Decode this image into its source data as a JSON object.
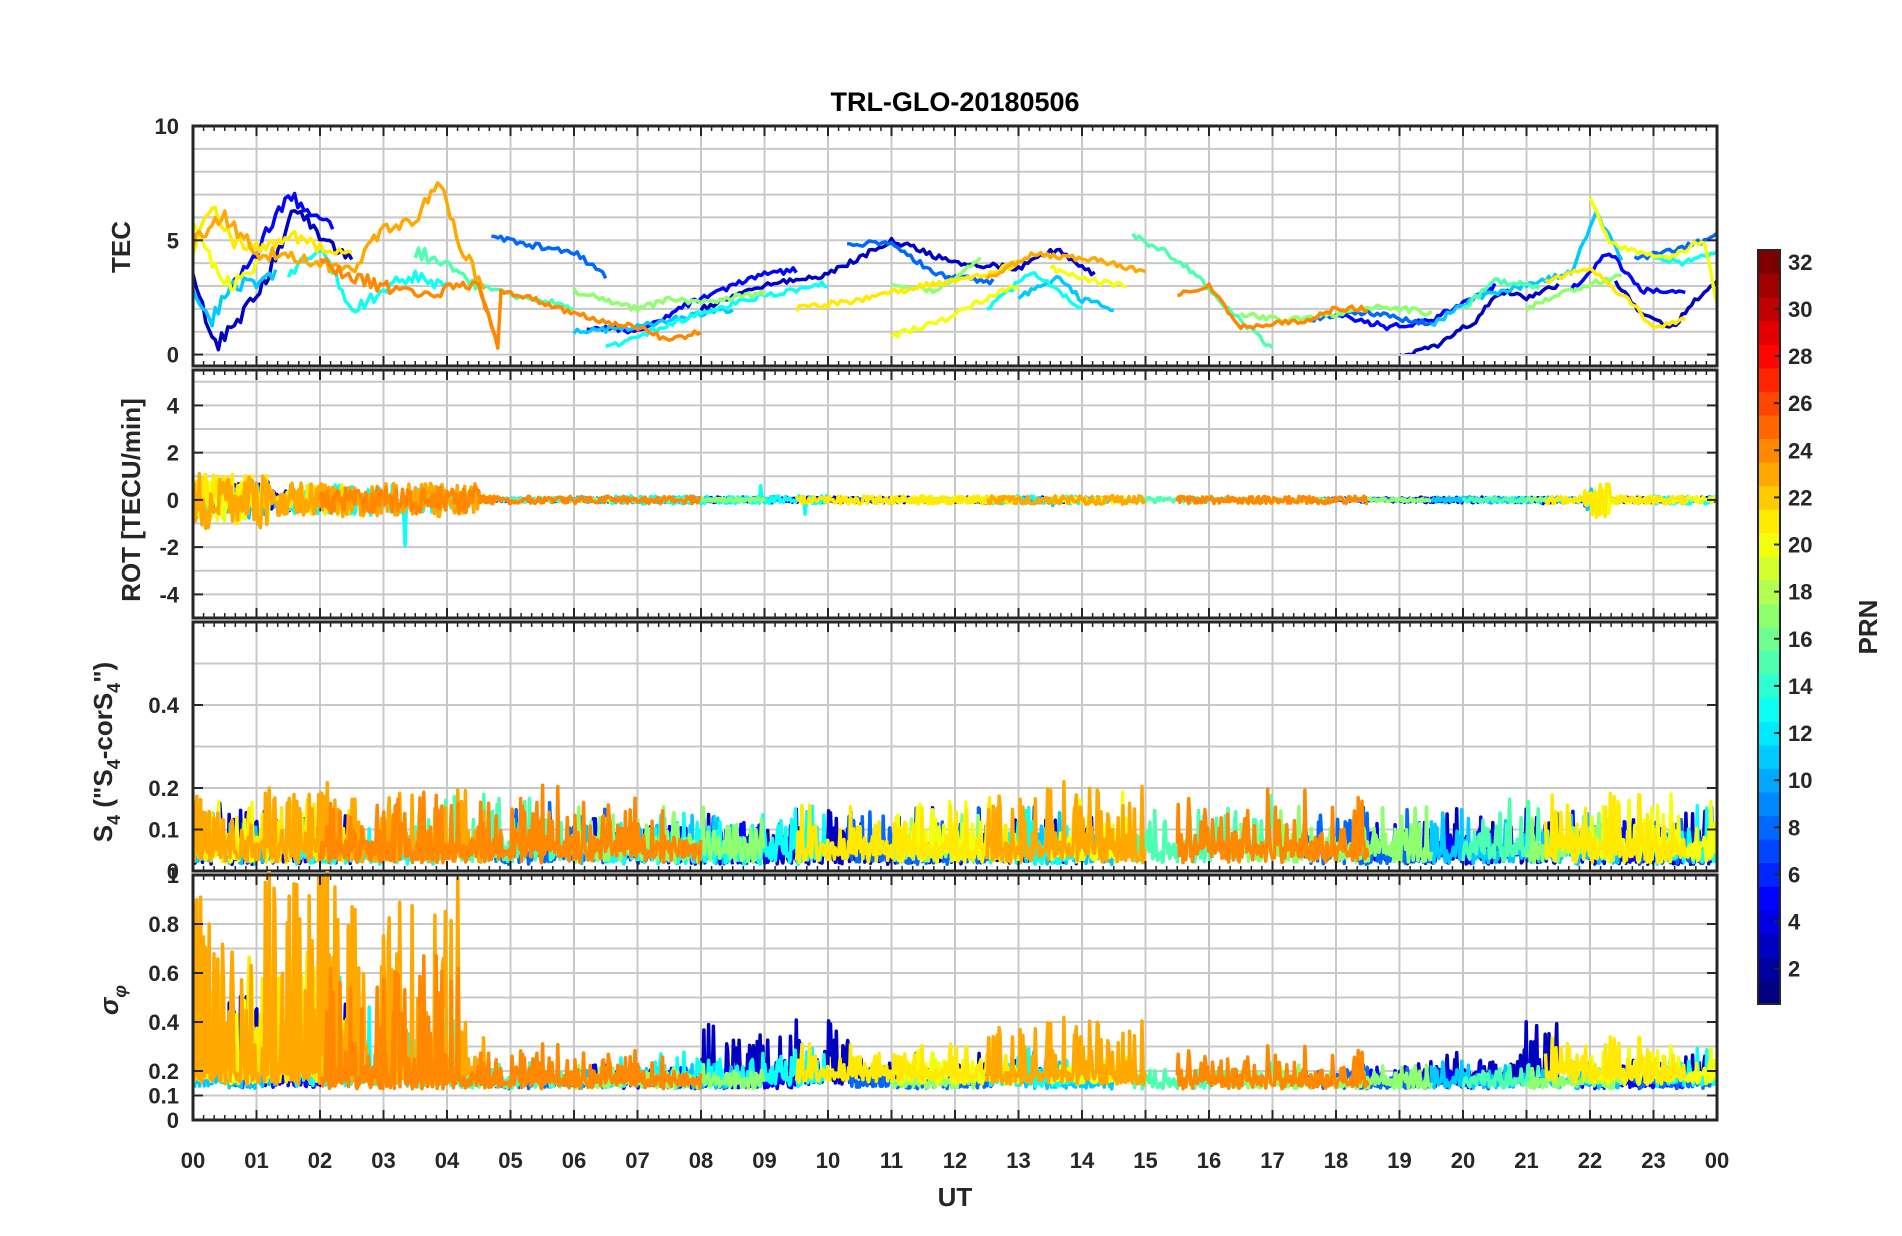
{
  "chart_data": {
    "type": "line",
    "title": "TRL-GLO-20180506",
    "xlabel": "UT",
    "x_ticks": [
      "00",
      "01",
      "02",
      "03",
      "04",
      "05",
      "06",
      "07",
      "08",
      "09",
      "10",
      "11",
      "12",
      "13",
      "14",
      "15",
      "16",
      "17",
      "18",
      "19",
      "20",
      "21",
      "22",
      "23",
      "00"
    ],
    "x_range_hours": [
      0,
      24
    ],
    "panels": [
      {
        "name": "tec",
        "ylabel": "TEC",
        "ylim": [
          -0.5,
          10
        ],
        "yticks": [
          0,
          5,
          10
        ],
        "ytick_labels": [
          "0",
          "5",
          "10"
        ],
        "minor_grid_step": 1,
        "sample_step_h": 0.05,
        "noise": 0.25
      },
      {
        "name": "rot",
        "ylabel": "ROT [TECU/min]",
        "ylim": [
          -5,
          5.5
        ],
        "yticks": [
          -4,
          -2,
          0,
          2,
          4
        ],
        "ytick_labels": [
          "-4",
          "-2",
          "0",
          "2",
          "4"
        ],
        "minor_grid_step": 1,
        "sample_step_h": 0.02
      },
      {
        "name": "s4",
        "ylabel_parts": [
          "S",
          "4",
          " (\"S",
          "4",
          "-corS",
          "4",
          "\")"
        ],
        "ylim": [
          0,
          0.6
        ],
        "yticks": [
          0,
          0.1,
          0.2,
          0.4
        ],
        "ytick_labels": [
          "0",
          "0.1",
          "0.2",
          "0.4"
        ],
        "minor_grid_step": 0.1,
        "sample_step_h": 0.015
      },
      {
        "name": "sigma_phi",
        "ylabel_parts": [
          "σ",
          "φ"
        ],
        "ylim": [
          0,
          1
        ],
        "yticks": [
          0,
          0.1,
          0.2,
          0.4,
          0.6,
          0.8,
          1
        ],
        "ytick_labels": [
          "0",
          "0.1",
          "0.2",
          "0.4",
          "0.6",
          "0.8",
          "1"
        ],
        "minor_grid_step": 0.1,
        "sample_step_h": 0.015
      }
    ],
    "colorbar": {
      "label": "PRN",
      "range": [
        1,
        32
      ],
      "ticks": [
        2,
        4,
        6,
        8,
        10,
        12,
        14,
        16,
        18,
        20,
        22,
        24,
        26,
        28,
        30,
        32
      ],
      "tick_labels": [
        "2",
        "4",
        "6",
        "8",
        "10",
        "12",
        "14",
        "16",
        "18",
        "20",
        "22",
        "24",
        "26",
        "28",
        "30",
        "32"
      ],
      "colormap": "jet",
      "levels": 32
    },
    "series": [
      {
        "name": "PRN 3",
        "prn": 3,
        "passes": [
          [
            0,
            2.5
          ],
          [
            8.0,
            14.2
          ],
          [
            19.0,
            21.5
          ],
          [
            22.4,
            24
          ]
        ],
        "tec": [
          [
            0,
            3.5
          ],
          [
            0.2,
            1.5
          ],
          [
            0.4,
            0.5
          ],
          [
            0.7,
            1.5
          ],
          [
            1.0,
            2.5
          ],
          [
            1.3,
            4.2
          ],
          [
            1.6,
            6.5
          ],
          [
            2.0,
            5.2
          ],
          [
            2.5,
            4.0
          ],
          [
            8.0,
            2.0
          ],
          [
            9.0,
            3.0
          ],
          [
            10.0,
            3.5
          ],
          [
            11.0,
            5.0
          ],
          [
            12.0,
            4.0
          ],
          [
            13.0,
            3.8
          ],
          [
            13.6,
            4.6
          ],
          [
            14.2,
            3.5
          ],
          [
            19.0,
            -0.1
          ],
          [
            19.6,
            0.4
          ],
          [
            20.2,
            1.5
          ],
          [
            20.6,
            2.8
          ],
          [
            21.0,
            2.5
          ],
          [
            21.5,
            3.0
          ],
          [
            22.4,
            3.2
          ],
          [
            22.8,
            1.8
          ],
          [
            23.3,
            1.2
          ],
          [
            23.8,
            2.8
          ],
          [
            24,
            3.2
          ]
        ],
        "rot_amp": 0.35,
        "s4_base": 0.04,
        "s4_amp": 0.07,
        "sp_base": 0.17,
        "sp_amp": 0.08
      },
      {
        "name": "PRN 5",
        "prn": 5,
        "passes": [
          [
            0.6,
            2.2
          ],
          [
            6.2,
            9.5
          ],
          [
            18.0,
            20.5
          ],
          [
            21.7,
            23.5
          ]
        ],
        "tec": [
          [
            0.6,
            3.0
          ],
          [
            1.0,
            4.5
          ],
          [
            1.5,
            7.0
          ],
          [
            2.2,
            5.5
          ],
          [
            6.2,
            1.2
          ],
          [
            7.0,
            1.0
          ],
          [
            8.0,
            2.5
          ],
          [
            9.0,
            3.5
          ],
          [
            9.5,
            3.7
          ],
          [
            18.0,
            1.8
          ],
          [
            18.8,
            1.2
          ],
          [
            19.5,
            1.5
          ],
          [
            20.5,
            3.0
          ],
          [
            21.7,
            2.8
          ],
          [
            22.3,
            4.5
          ],
          [
            22.8,
            2.8
          ],
          [
            23.5,
            2.7
          ]
        ],
        "rot_amp": 0.25,
        "s4_base": 0.04,
        "s4_amp": 0.06,
        "sp_base": 0.15,
        "sp_amp": 0.06
      },
      {
        "name": "PRN 8",
        "prn": 8,
        "passes": [
          [
            4.7,
            6.5
          ],
          [
            10.3,
            12.6
          ],
          [
            17.5,
            19.5
          ],
          [
            22.7,
            24
          ]
        ],
        "tec": [
          [
            4.7,
            5.2
          ],
          [
            5.3,
            4.8
          ],
          [
            6.0,
            4.5
          ],
          [
            6.5,
            3.4
          ],
          [
            10.3,
            4.8
          ],
          [
            11.0,
            4.9
          ],
          [
            11.7,
            3.5
          ],
          [
            12.6,
            3.2
          ],
          [
            17.5,
            1.5
          ],
          [
            18.3,
            1.9
          ],
          [
            19.0,
            1.6
          ],
          [
            19.5,
            1.3
          ],
          [
            22.7,
            4.2
          ],
          [
            23.4,
            4.6
          ],
          [
            24,
            5.2
          ]
        ],
        "rot_amp": 0.2,
        "s4_base": 0.04,
        "s4_amp": 0.07,
        "sp_base": 0.15,
        "sp_amp": 0.05
      },
      {
        "name": "PRN 11",
        "prn": 11,
        "passes": [
          [
            0,
            1.3
          ],
          [
            6.0,
            8.5
          ],
          [
            13.0,
            14.5
          ],
          [
            19.5,
            22.5
          ]
        ],
        "tec": [
          [
            0,
            2.8
          ],
          [
            0.3,
            1.5
          ],
          [
            0.6,
            3.0
          ],
          [
            1.0,
            3.2
          ],
          [
            1.3,
            3.6
          ],
          [
            6.0,
            1.0
          ],
          [
            7.0,
            1.2
          ],
          [
            8.0,
            1.8
          ],
          [
            8.5,
            2.0
          ],
          [
            13.0,
            2.5
          ],
          [
            13.6,
            3.4
          ],
          [
            14.0,
            2.4
          ],
          [
            14.5,
            2.0
          ],
          [
            19.5,
            1.3
          ],
          [
            20.2,
            2.5
          ],
          [
            21.0,
            3.0
          ],
          [
            21.7,
            3.6
          ],
          [
            22.1,
            6.2
          ],
          [
            22.5,
            4.2
          ]
        ],
        "rot_amp": 0.35,
        "s4_base": 0.04,
        "s4_amp": 0.06,
        "sp_base": 0.15,
        "sp_amp": 0.06
      },
      {
        "name": "PRN 13",
        "prn": 13,
        "passes": [
          [
            1.5,
            4.0
          ],
          [
            6.5,
            10.0
          ],
          [
            12.5,
            14.0
          ],
          [
            23.0,
            24
          ]
        ],
        "tec": [
          [
            1.5,
            3.5
          ],
          [
            2.0,
            4.8
          ],
          [
            2.5,
            2.0
          ],
          [
            3.0,
            2.8
          ],
          [
            3.5,
            3.5
          ],
          [
            4.0,
            3.0
          ],
          [
            6.5,
            0.3
          ],
          [
            7.0,
            0.8
          ],
          [
            8.0,
            1.8
          ],
          [
            9.0,
            2.6
          ],
          [
            10.0,
            3.1
          ],
          [
            12.5,
            2.0
          ],
          [
            13.2,
            3.6
          ],
          [
            14.0,
            2.0
          ],
          [
            23.0,
            4.2
          ],
          [
            23.5,
            4.0
          ],
          [
            24,
            4.5
          ]
        ],
        "rot_amp": 0.5,
        "s4_base": 0.04,
        "s4_amp": 0.07,
        "sp_base": 0.16,
        "sp_amp": 0.1
      },
      {
        "name": "PRN 15",
        "prn": 15,
        "passes": [
          [
            3.5,
            6.0
          ],
          [
            14.8,
            17.0
          ],
          [
            20.0,
            21.2
          ]
        ],
        "tec": [
          [
            3.5,
            4.5
          ],
          [
            4.0,
            4.0
          ],
          [
            4.5,
            3.0
          ],
          [
            5.0,
            2.6
          ],
          [
            5.5,
            2.4
          ],
          [
            6.0,
            2.0
          ],
          [
            14.8,
            5.2
          ],
          [
            15.3,
            4.5
          ],
          [
            15.8,
            3.5
          ],
          [
            16.3,
            2.0
          ],
          [
            17.0,
            0.2
          ],
          [
            20.0,
            2.0
          ],
          [
            20.5,
            3.2
          ],
          [
            21.2,
            3.0
          ]
        ],
        "rot_amp": 0.3,
        "s4_base": 0.05,
        "s4_amp": 0.08,
        "sp_base": 0.15,
        "sp_amp": 0.06
      },
      {
        "name": "PRN 17",
        "prn": 17,
        "passes": [
          [
            6.0,
            9.0
          ],
          [
            11.0,
            12.4
          ],
          [
            16.5,
            19.5
          ],
          [
            21.0,
            22.5
          ]
        ],
        "tec": [
          [
            6.0,
            2.8
          ],
          [
            6.5,
            2.4
          ],
          [
            7.0,
            2.0
          ],
          [
            7.5,
            2.4
          ],
          [
            8.0,
            2.3
          ],
          [
            8.5,
            2.5
          ],
          [
            9.0,
            2.7
          ],
          [
            11.0,
            3.0
          ],
          [
            11.7,
            2.8
          ],
          [
            12.4,
            4.2
          ],
          [
            16.5,
            1.8
          ],
          [
            17.2,
            1.5
          ],
          [
            18.0,
            1.8
          ],
          [
            18.8,
            2.1
          ],
          [
            19.5,
            1.8
          ],
          [
            21.0,
            2.0
          ],
          [
            21.7,
            2.8
          ],
          [
            22.5,
            3.5
          ]
        ],
        "rot_amp": 0.2,
        "s4_base": 0.05,
        "s4_amp": 0.06,
        "sp_base": 0.15,
        "sp_amp": 0.05
      },
      {
        "name": "PRN 20",
        "prn": 20,
        "passes": [
          [
            0,
            1.0
          ],
          [
            11.0,
            13.0
          ],
          [
            13.5,
            14.7
          ],
          [
            22.0,
            24
          ]
        ],
        "tec": [
          [
            0,
            5.5
          ],
          [
            0.3,
            4.0
          ],
          [
            0.6,
            3.0
          ],
          [
            1.0,
            4.0
          ],
          [
            11.0,
            0.8
          ],
          [
            11.8,
            1.5
          ],
          [
            12.5,
            2.5
          ],
          [
            13.0,
            3.0
          ],
          [
            13.5,
            3.8
          ],
          [
            14.0,
            3.3
          ],
          [
            14.7,
            3.0
          ],
          [
            22.0,
            6.8
          ],
          [
            22.3,
            5.0
          ],
          [
            22.7,
            4.5
          ],
          [
            23.2,
            4.2
          ],
          [
            23.8,
            5.0
          ],
          [
            24,
            2.2
          ]
        ],
        "rot_amp": 0.4,
        "s4_base": 0.05,
        "s4_amp": 0.08,
        "sp_base": 0.17,
        "sp_amp": 0.1
      },
      {
        "name": "PRN 21",
        "prn": 21,
        "passes": [
          [
            0,
            2.5
          ],
          [
            9.5,
            13.0
          ],
          [
            21.3,
            23.5
          ]
        ],
        "tec": [
          [
            0,
            4.5
          ],
          [
            0.3,
            6.5
          ],
          [
            0.6,
            5.0
          ],
          [
            1.0,
            4.6
          ],
          [
            1.5,
            5.2
          ],
          [
            2.0,
            4.6
          ],
          [
            2.5,
            4.2
          ],
          [
            9.5,
            2.0
          ],
          [
            10.5,
            2.4
          ],
          [
            11.5,
            3.0
          ],
          [
            12.5,
            3.5
          ],
          [
            13.0,
            4.0
          ],
          [
            21.3,
            3.2
          ],
          [
            22.0,
            3.8
          ],
          [
            22.6,
            2.4
          ],
          [
            23.0,
            1.2
          ],
          [
            23.5,
            1.5
          ]
        ],
        "rot_amp": 0.5,
        "s4_base": 0.05,
        "s4_amp": 0.08,
        "sp_base": 0.18,
        "sp_amp": 0.12
      },
      {
        "name": "PRN 23",
        "prn": 23,
        "passes": [
          [
            0,
            4.6
          ],
          [
            12.5,
            15.0
          ]
        ],
        "tec": [
          [
            0,
            5.0
          ],
          [
            0.5,
            6.0
          ],
          [
            1.0,
            4.5
          ],
          [
            1.5,
            4.3
          ],
          [
            2.0,
            4.0
          ],
          [
            2.5,
            3.6
          ],
          [
            3.0,
            5.5
          ],
          [
            3.5,
            6.0
          ],
          [
            3.9,
            7.5
          ],
          [
            4.2,
            4.8
          ],
          [
            4.6,
            2.8
          ],
          [
            12.5,
            3.3
          ],
          [
            13.2,
            4.4
          ],
          [
            14.0,
            4.2
          ],
          [
            14.5,
            4.0
          ],
          [
            15.0,
            3.6
          ]
        ],
        "rot_amp": 0.55,
        "s4_base": 0.05,
        "s4_amp": 0.1,
        "sp_base": 0.17,
        "sp_amp": 0.2
      },
      {
        "name": "PRN 24",
        "prn": 24,
        "passes": [
          [
            2.0,
            4.8
          ],
          [
            4.5,
            8.0
          ],
          [
            15.5,
            18.5
          ]
        ],
        "tec": [
          [
            2.0,
            4.2
          ],
          [
            2.5,
            3.4
          ],
          [
            3.0,
            3.0
          ],
          [
            3.5,
            2.6
          ],
          [
            4.0,
            2.8
          ],
          [
            4.5,
            3.0
          ],
          [
            4.8,
            0.4
          ],
          [
            4.5,
            3.0
          ],
          [
            5.0,
            2.7
          ],
          [
            5.5,
            2.3
          ],
          [
            6.0,
            1.8
          ],
          [
            6.5,
            1.4
          ],
          [
            7.0,
            1.2
          ],
          [
            7.5,
            0.6
          ],
          [
            8.0,
            1.0
          ],
          [
            15.5,
            2.6
          ],
          [
            16.0,
            3.0
          ],
          [
            16.5,
            1.2
          ],
          [
            17.0,
            1.4
          ],
          [
            17.5,
            1.4
          ],
          [
            18.0,
            2.0
          ],
          [
            18.5,
            2.0
          ]
        ],
        "rot_amp": 0.45,
        "s4_base": 0.05,
        "s4_amp": 0.09,
        "sp_base": 0.15,
        "sp_amp": 0.12
      }
    ]
  }
}
